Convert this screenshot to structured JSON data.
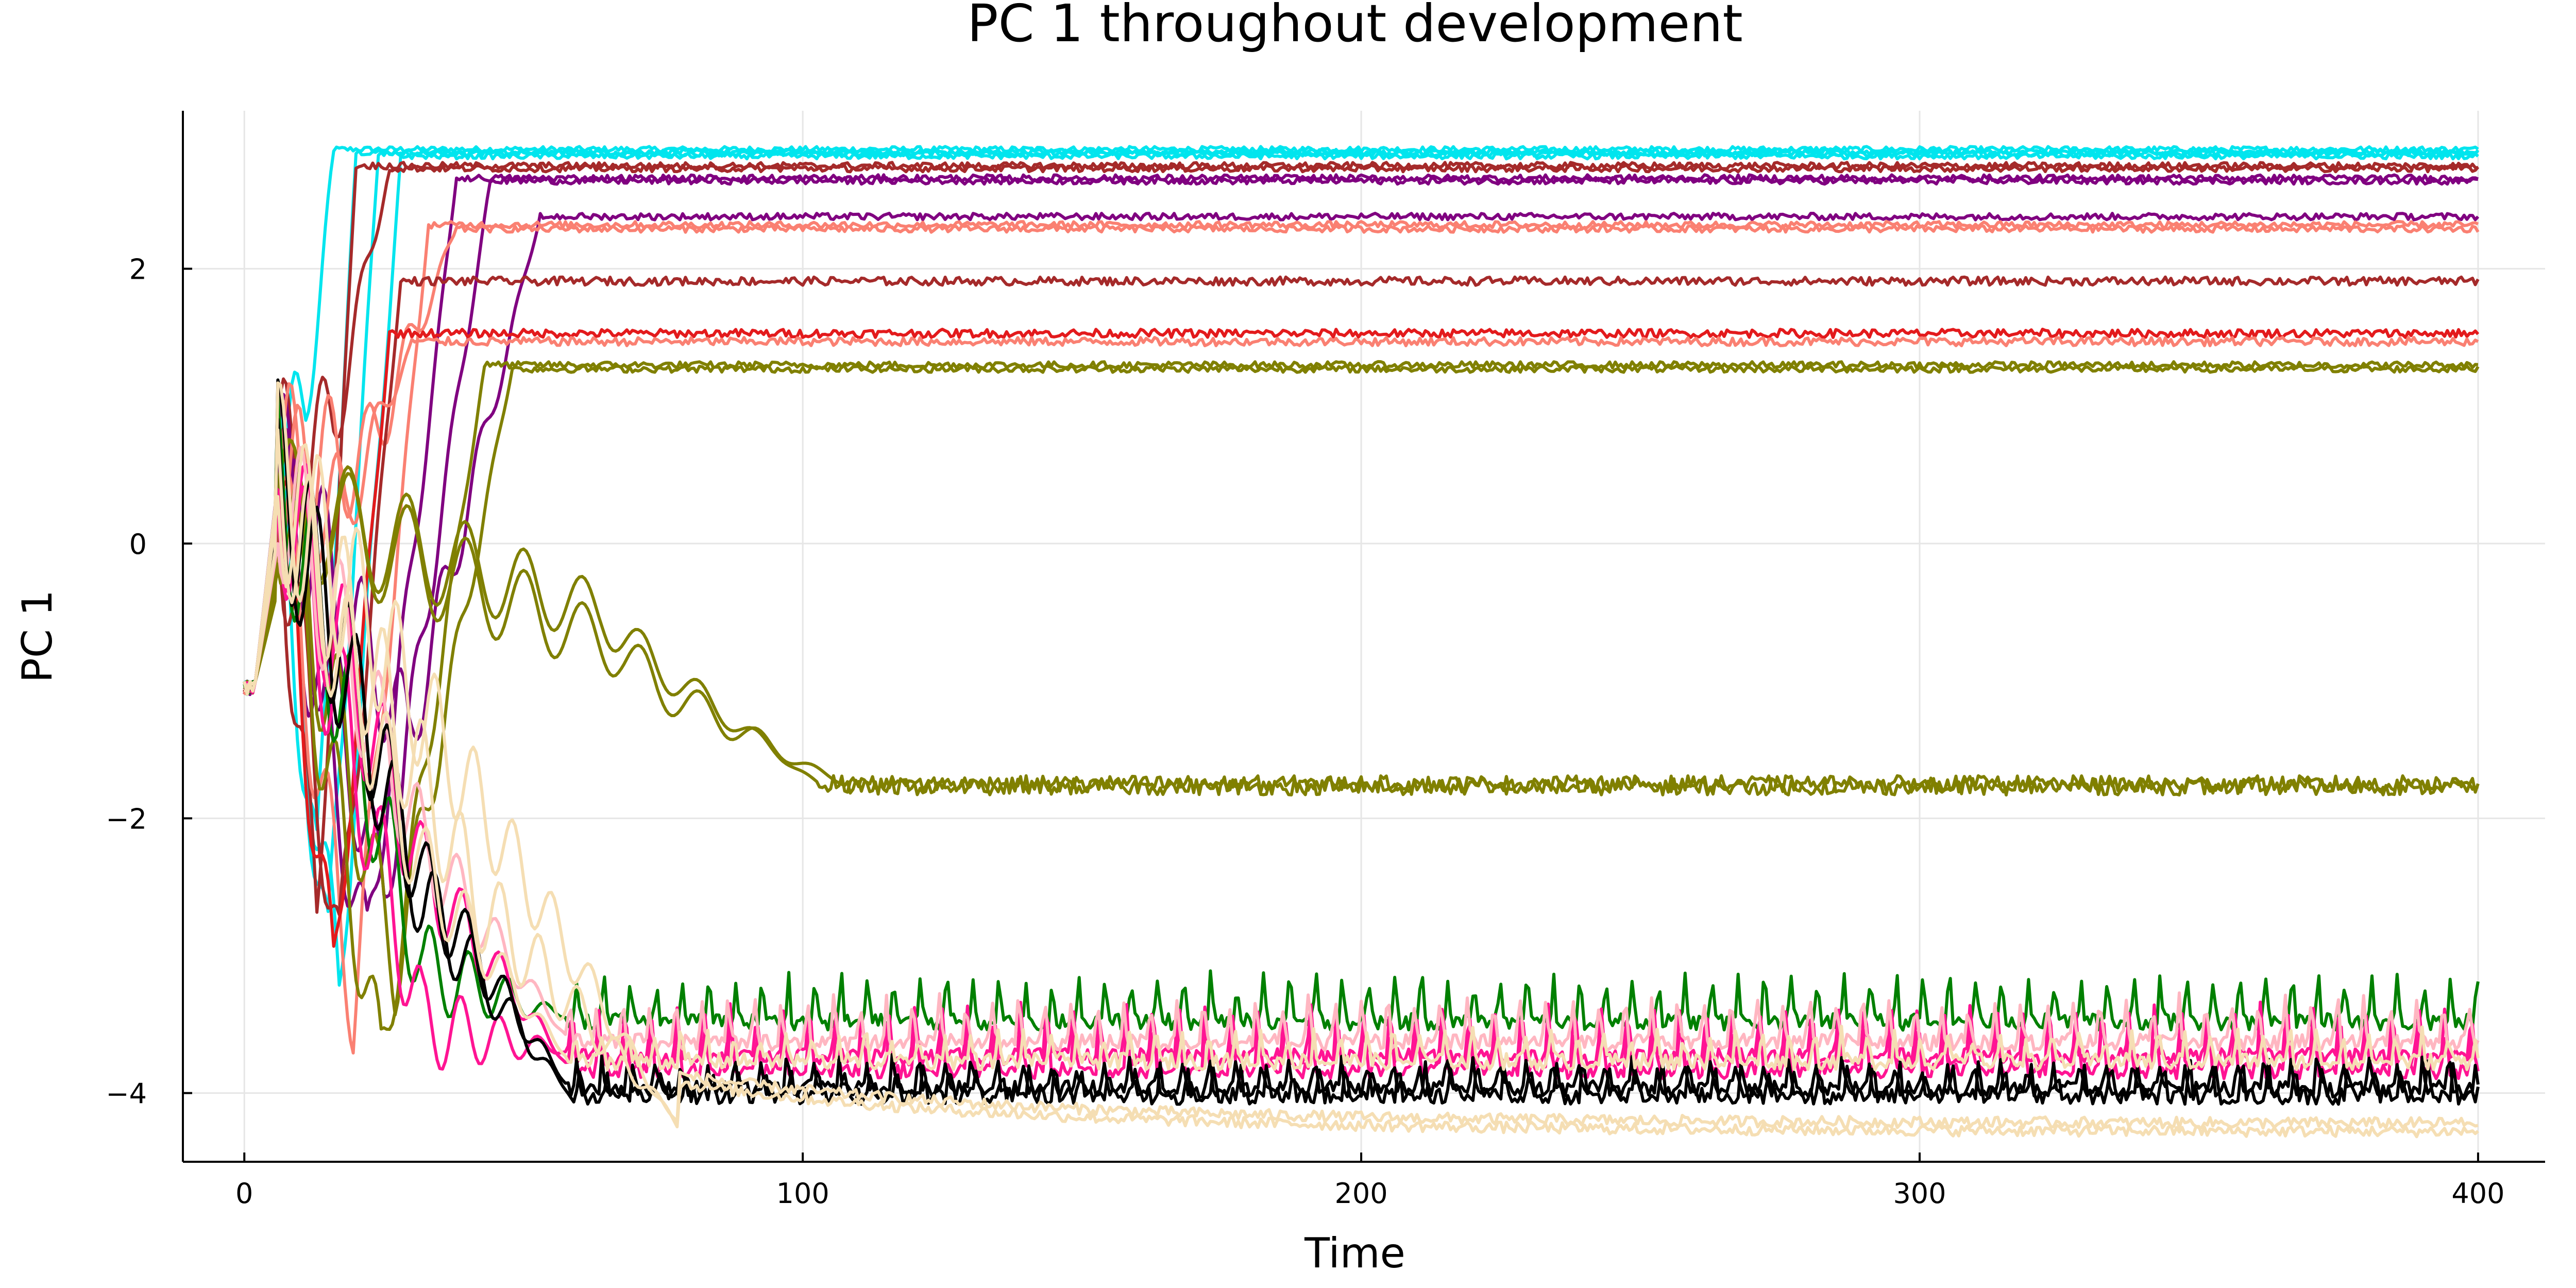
{
  "chart_data": {
    "type": "line",
    "title": "PC 1 throughout development",
    "xlabel": "Time",
    "ylabel": "PC 1",
    "xlim": [
      -11,
      412
    ],
    "ylim": [
      -4.5,
      3.15
    ],
    "xticks": [
      0,
      100,
      200,
      300,
      400
    ],
    "yticks": [
      -4,
      -2,
      0,
      2
    ],
    "ytick_labels": [
      "−4",
      "−2",
      "0",
      "2"
    ],
    "grid": true,
    "legend": "none",
    "x_range": [
      0,
      400
    ],
    "colors": {
      "cyan": "#00e5ee",
      "brown": "#a52a2a",
      "purple": "#800080",
      "salmon": "#fa8072",
      "red": "#e31a1c",
      "olive": "#808000",
      "green": "#008000",
      "pink": "#ff1493",
      "lightpink": "#ffb6c1",
      "wheat": "#f5deb3",
      "black": "#000000"
    },
    "series": [
      {
        "color": "cyan",
        "start": -1.0,
        "final": 2.87,
        "settle_t": 18,
        "noise": 0.01,
        "osc": 0,
        "dip": null
      },
      {
        "color": "cyan",
        "start": -1.0,
        "final": 2.85,
        "settle_t": 22,
        "noise": 0.01,
        "osc": 0,
        "dip": -2.4
      },
      {
        "color": "cyan",
        "start": -1.0,
        "final": 2.84,
        "settle_t": 26,
        "noise": 0.01,
        "osc": 0,
        "dip": -3.0
      },
      {
        "color": "cyan",
        "start": -1.0,
        "final": 2.82,
        "settle_t": 30,
        "noise": 0.01,
        "osc": 0,
        "dip": -3.3
      },
      {
        "color": "brown",
        "start": -1.0,
        "final": 2.75,
        "settle_t": 22,
        "noise": 0.012,
        "osc": 0,
        "dip": -2.8
      },
      {
        "color": "brown",
        "start": -1.0,
        "final": 2.73,
        "settle_t": 28,
        "noise": 0.012,
        "osc": 0,
        "dip": null
      },
      {
        "color": "purple",
        "start": -1.0,
        "final": 2.66,
        "settle_t": 40,
        "noise": 0.012,
        "osc": 0,
        "dip": -3.0
      },
      {
        "color": "purple",
        "start": -1.0,
        "final": 2.64,
        "settle_t": 46,
        "noise": 0.012,
        "osc": 0,
        "dip": -2.6
      },
      {
        "color": "purple",
        "start": -1.0,
        "final": 2.38,
        "settle_t": 55,
        "noise": 0.012,
        "osc": 0,
        "dip": -1.4
      },
      {
        "color": "salmon",
        "start": -1.0,
        "final": 2.32,
        "settle_t": 35,
        "noise": 0.012,
        "osc": 0,
        "dip": -3.4
      },
      {
        "color": "salmon",
        "start": -1.0,
        "final": 2.29,
        "settle_t": 40,
        "noise": 0.012,
        "osc": 0,
        "dip": null
      },
      {
        "color": "brown",
        "start": -1.0,
        "final": 1.91,
        "settle_t": 30,
        "noise": 0.015,
        "osc": 0,
        "dip": -3.0
      },
      {
        "color": "red",
        "start": -1.0,
        "final": 1.53,
        "settle_t": 28,
        "noise": 0.015,
        "osc": 0,
        "dip": -3.2
      },
      {
        "color": "salmon",
        "start": -1.0,
        "final": 1.47,
        "settle_t": 32,
        "noise": 0.015,
        "osc": 0,
        "dip": null
      },
      {
        "color": "olive",
        "start": -1.0,
        "final": 1.3,
        "settle_t": 45,
        "noise": 0.012,
        "osc": 0,
        "dip": -3.8
      },
      {
        "color": "olive",
        "start": -1.0,
        "final": 1.27,
        "settle_t": 50,
        "noise": 0.012,
        "osc": 0,
        "dip": -3.1
      },
      {
        "color": "olive",
        "start": -1.0,
        "final": -1.75,
        "settle_t": 105,
        "noise": 0.03,
        "osc": 0,
        "dip": null,
        "plateau": -0.6
      },
      {
        "color": "olive",
        "start": -1.0,
        "final": -1.77,
        "settle_t": 110,
        "noise": 0.03,
        "osc": 0,
        "dip": null,
        "plateau": -0.9
      },
      {
        "color": "green",
        "start": -1.0,
        "final": -3.45,
        "settle_t": 60,
        "noise": 0.03,
        "osc": 0.32,
        "dip": -3.1
      },
      {
        "color": "pink",
        "start": -1.0,
        "final": -3.7,
        "settle_t": 60,
        "noise": 0.03,
        "osc": 0.35,
        "dip": -3.5
      },
      {
        "color": "pink",
        "start": -1.0,
        "final": -3.8,
        "settle_t": 60,
        "noise": 0.03,
        "osc": 0.35,
        "dip": null
      },
      {
        "color": "lightpink",
        "start": -1.0,
        "final": -3.6,
        "settle_t": 60,
        "noise": 0.03,
        "osc": 0.3,
        "dip": -2.2
      },
      {
        "color": "black",
        "start": -1.0,
        "final": -4.0,
        "settle_t": 60,
        "noise": 0.03,
        "osc": 0.22,
        "dip": -2.6
      },
      {
        "color": "black",
        "start": -1.0,
        "final": -3.95,
        "settle_t": 60,
        "noise": 0.03,
        "osc": 0.2,
        "dip": null
      },
      {
        "color": "wheat",
        "start": -1.0,
        "final": -4.28,
        "settle_t": 80,
        "noise": 0.02,
        "osc": 0,
        "dip": -1.9
      },
      {
        "color": "wheat",
        "start": -1.0,
        "final": -4.22,
        "settle_t": 80,
        "noise": 0.02,
        "osc": 0,
        "dip": null
      },
      {
        "color": "wheat",
        "start": -1.0,
        "final": -3.75,
        "settle_t": 60,
        "noise": 0.03,
        "osc": 0.2,
        "dip": null
      }
    ]
  }
}
